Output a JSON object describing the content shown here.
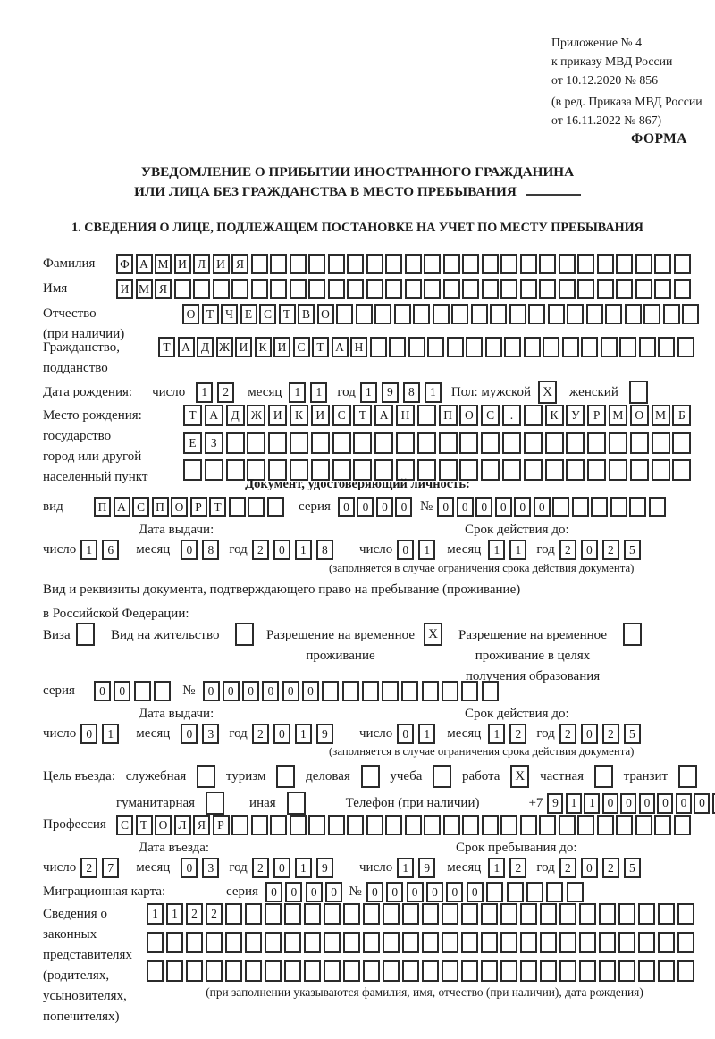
{
  "ref_header": {
    "block1": "Приложение № 4\nк приказу МВД России\nот 10.12.2020 № 856",
    "block2": "(в ред. Приказа МВД России\nот 16.11.2022 № 867)",
    "forma": "ФОРМА"
  },
  "title": {
    "line1": "УВЕДОМЛЕНИЕ О ПРИБЫТИИ ИНОСТРАННОГО ГРАЖДАНИНА",
    "line2": "ИЛИ ЛИЦА БЕЗ ГРАЖДАНСТВА В МЕСТО ПРЕБЫВАНИЯ"
  },
  "section1_heading": "1. СВЕДЕНИЯ О ЛИЦЕ, ПОДЛЕЖАЩЕМ ПОСТАНОВКЕ НА УЧЕТ ПО МЕСТУ ПРЕБЫВАНИЯ",
  "labels": {
    "day": "число",
    "month": "месяц",
    "year": "год",
    "series": "серия",
    "number": "№",
    "issue_date": "Дата выдачи:",
    "valid_until": "Срок действия до:",
    "entry_date": "Дата въезда:",
    "stay_until": "Срок пребывания до:",
    "limit_note": "(заполняется в случае ограничения срока действия документа)"
  },
  "person": {
    "surname": {
      "label": "Фамилия",
      "value": "ФАМИЛИЯ",
      "count": 30
    },
    "name": {
      "label": "Имя",
      "value": "ИМЯ",
      "count": 30
    },
    "patronymic": {
      "label": "Отчество\n(при наличии)",
      "value": "ОТЧЕСТВО",
      "count": 27
    },
    "citizenship": {
      "label": "Гражданство,\nподданство",
      "value": "ТАДЖИКИСТАН",
      "count": 28
    },
    "birth_date": {
      "label": "Дата рождения:",
      "day": "12",
      "month": "11",
      "year": "1981",
      "sex_label": "Пол: мужской",
      "male_checked": "X",
      "female_label": "женский",
      "female_checked": ""
    },
    "birth_place": {
      "label": "Место рождения:\nгосударство\nгород или другой\nнаселенный пункт",
      "row1": {
        "value": "ТАДЖИКИСТАН ПОС. КУРМОМБ",
        "count": 24
      },
      "row2": {
        "value": "ЕЗ",
        "count": 24
      },
      "row3": {
        "value": "",
        "count": 24
      }
    }
  },
  "identity_doc": {
    "heading": "Документ, удостоверяющий личность:",
    "kind_label": "вид",
    "kind": {
      "value": "ПАСПОРТ",
      "count": 10
    },
    "series": {
      "value": "0000",
      "count": 4
    },
    "number": {
      "value": "000000",
      "count": 12
    },
    "issue": {
      "day": "16",
      "month": "08",
      "year": "2018"
    },
    "valid": {
      "day": "01",
      "month": "11",
      "year": "2025"
    }
  },
  "residence_doc": {
    "heading1": "Вид и реквизиты документа, подтверждающего право на пребывание (проживание)",
    "heading2": "в Российской Федерации:",
    "options": [
      {
        "label": "Виза",
        "checked": ""
      },
      {
        "label": "Вид на жительство",
        "checked": ""
      },
      {
        "label": "Разрешение на временное\nпроживание",
        "checked": "X"
      },
      {
        "label": "Разрешение на временное\nпроживание в целях\nполучения образования",
        "checked": ""
      }
    ],
    "series": {
      "value": "00",
      "count": 4
    },
    "number": {
      "value": "000000",
      "count": 15
    },
    "issue": {
      "day": "01",
      "month": "03",
      "year": "2019"
    },
    "valid": {
      "day": "01",
      "month": "12",
      "year": "2025"
    }
  },
  "visit_purpose": {
    "label": "Цель въезда:",
    "options_row1": [
      {
        "label": "служебная",
        "checked": ""
      },
      {
        "label": "туризм",
        "checked": ""
      },
      {
        "label": "деловая",
        "checked": ""
      },
      {
        "label": "учеба",
        "checked": ""
      },
      {
        "label": "работа",
        "checked": "X"
      },
      {
        "label": "частная",
        "checked": ""
      },
      {
        "label": "транзит",
        "checked": ""
      }
    ],
    "options_row2": [
      {
        "label": "гуманитарная",
        "checked": ""
      },
      {
        "label": "иная",
        "checked": ""
      }
    ],
    "phone_label": "Телефон (при наличии)",
    "phone_prefix": "+7",
    "phone": {
      "value": "911000000",
      "count": 10
    }
  },
  "profession": {
    "label": "Профессия",
    "value": "СТОЛЯР",
    "count": 30
  },
  "entry": {
    "issue": {
      "day": "27",
      "month": "03",
      "year": "2019"
    },
    "stay": {
      "day": "19",
      "month": "12",
      "year": "2025"
    }
  },
  "migration_card": {
    "label": "Миграционная карта:",
    "series": {
      "value": "0000",
      "count": 4
    },
    "number": {
      "value": "000000",
      "count": 11
    }
  },
  "representatives": {
    "label": "Сведения о\nзаконных\nпредставителях\n(родителях,\nусыновителях,\nпопечителях)",
    "row1": {
      "value": "1122",
      "count": 28
    },
    "row2": {
      "value": "",
      "count": 28
    },
    "row3": {
      "value": "",
      "count": 28
    },
    "note": "(при заполнении указываются фамилия, имя, отчество (при наличии), дата рождения)"
  }
}
